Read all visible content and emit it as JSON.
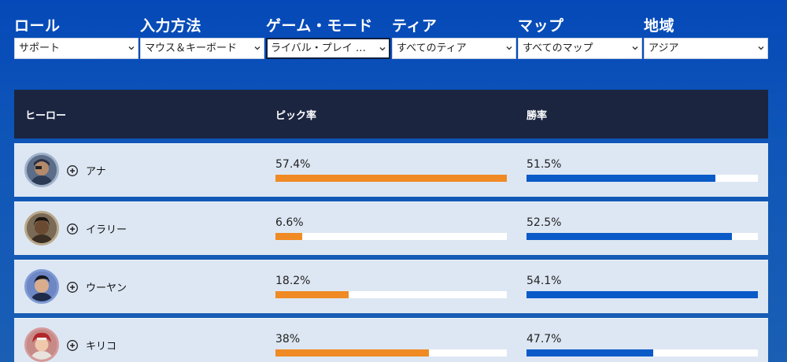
{
  "filters": [
    {
      "label": "ロール",
      "value": "サポート",
      "active": false
    },
    {
      "label": "入力方法",
      "value": "マウス＆キーボード",
      "active": false
    },
    {
      "label": "ゲーム・モード",
      "value": "ライバル・プレイ …",
      "active": true
    },
    {
      "label": "ティア",
      "value": "すべてのティア",
      "active": false
    },
    {
      "label": "マップ",
      "value": "すべてのマップ",
      "active": false
    },
    {
      "label": "地域",
      "value": "アジア",
      "active": false
    }
  ],
  "table": {
    "headers": {
      "hero": "ヒーロー",
      "pick": "ピック率",
      "win": "勝率"
    },
    "rows": [
      {
        "name": "アナ",
        "pick": "57.4%",
        "pick_value": 57.4,
        "win": "51.5%",
        "win_value": 51.5
      },
      {
        "name": "イラリー",
        "pick": "6.6%",
        "pick_value": 6.6,
        "win": "52.5%",
        "win_value": 52.5
      },
      {
        "name": "ウーヤン",
        "pick": "18.2%",
        "pick_value": 18.2,
        "win": "54.1%",
        "win_value": 54.1
      },
      {
        "name": "キリコ",
        "pick": "38%",
        "pick_value": 38,
        "win": "47.7%",
        "win_value": 47.7
      }
    ]
  },
  "colors": {
    "pick_bar": "#f08a24",
    "win_bar": "#0a5ac8",
    "header_bg": "#1b2540"
  }
}
